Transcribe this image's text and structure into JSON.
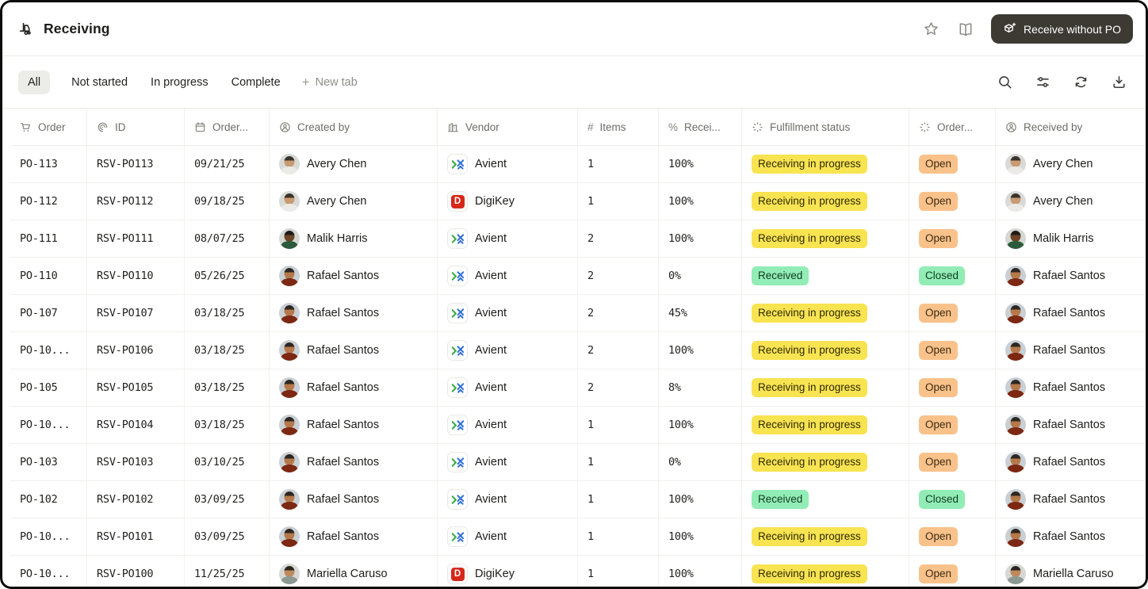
{
  "header": {
    "title": "Receiving",
    "receive_button_label": "Receive without PO"
  },
  "tabs": {
    "items": [
      {
        "label": "All",
        "active": true
      },
      {
        "label": "Not started",
        "active": false
      },
      {
        "label": "In progress",
        "active": false
      },
      {
        "label": "Complete",
        "active": false
      }
    ],
    "new_tab_label": "New tab"
  },
  "toolbar_icons": [
    "search-icon",
    "filter-icon",
    "refresh-icon",
    "download-icon"
  ],
  "table": {
    "columns": [
      {
        "key": "order",
        "icon": "cart",
        "label": "Order"
      },
      {
        "key": "id",
        "icon": "fingerprint",
        "label": "ID"
      },
      {
        "key": "date",
        "icon": "calendar",
        "label": "Order..."
      },
      {
        "key": "created_by",
        "icon": "person",
        "label": "Created by"
      },
      {
        "key": "vendor",
        "icon": "building",
        "label": "Vendor"
      },
      {
        "key": "items",
        "icon": "hash",
        "label": "Items"
      },
      {
        "key": "pct",
        "icon": "percent",
        "label": "Recei..."
      },
      {
        "key": "fulfillment",
        "icon": "status",
        "label": "Fulfillment status"
      },
      {
        "key": "order_status",
        "icon": "status",
        "label": "Order..."
      },
      {
        "key": "received_by",
        "icon": "person",
        "label": "Received by"
      }
    ],
    "rows": [
      {
        "order": "PO-113",
        "id": "RSV-PO113",
        "date": "09/21/25",
        "created_by": "avery",
        "vendor": "avient",
        "items": "1",
        "pct": "100%",
        "fulfillment": "Receiving in progress",
        "order_status": "Open",
        "received_by": "avery"
      },
      {
        "order": "PO-112",
        "id": "RSV-PO112",
        "date": "09/18/25",
        "created_by": "avery",
        "vendor": "digikey",
        "items": "1",
        "pct": "100%",
        "fulfillment": "Receiving in progress",
        "order_status": "Open",
        "received_by": "avery"
      },
      {
        "order": "PO-111",
        "id": "RSV-PO111",
        "date": "08/07/25",
        "created_by": "malik",
        "vendor": "avient",
        "items": "2",
        "pct": "100%",
        "fulfillment": "Receiving in progress",
        "order_status": "Open",
        "received_by": "malik"
      },
      {
        "order": "PO-110",
        "id": "RSV-PO110",
        "date": "05/26/25",
        "created_by": "rafael",
        "vendor": "avient",
        "items": "2",
        "pct": "0%",
        "fulfillment": "Received",
        "order_status": "Closed",
        "received_by": "rafael"
      },
      {
        "order": "PO-107",
        "id": "RSV-PO107",
        "date": "03/18/25",
        "created_by": "rafael",
        "vendor": "avient",
        "items": "2",
        "pct": "45%",
        "fulfillment": "Receiving in progress",
        "order_status": "Open",
        "received_by": "rafael"
      },
      {
        "order": "PO-10...",
        "id": "RSV-PO106",
        "date": "03/18/25",
        "created_by": "rafael",
        "vendor": "avient",
        "items": "2",
        "pct": "100%",
        "fulfillment": "Receiving in progress",
        "order_status": "Open",
        "received_by": "rafael"
      },
      {
        "order": "PO-105",
        "id": "RSV-PO105",
        "date": "03/18/25",
        "created_by": "rafael",
        "vendor": "avient",
        "items": "2",
        "pct": "8%",
        "fulfillment": "Receiving in progress",
        "order_status": "Open",
        "received_by": "rafael"
      },
      {
        "order": "PO-10...",
        "id": "RSV-PO104",
        "date": "03/18/25",
        "created_by": "rafael",
        "vendor": "avient",
        "items": "1",
        "pct": "100%",
        "fulfillment": "Receiving in progress",
        "order_status": "Open",
        "received_by": "rafael"
      },
      {
        "order": "PO-103",
        "id": "RSV-PO103",
        "date": "03/10/25",
        "created_by": "rafael",
        "vendor": "avient",
        "items": "1",
        "pct": "0%",
        "fulfillment": "Receiving in progress",
        "order_status": "Open",
        "received_by": "rafael"
      },
      {
        "order": "PO-102",
        "id": "RSV-PO102",
        "date": "03/09/25",
        "created_by": "rafael",
        "vendor": "avient",
        "items": "1",
        "pct": "100%",
        "fulfillment": "Received",
        "order_status": "Closed",
        "received_by": "rafael"
      },
      {
        "order": "PO-10...",
        "id": "RSV-PO101",
        "date": "03/09/25",
        "created_by": "rafael",
        "vendor": "avient",
        "items": "1",
        "pct": "100%",
        "fulfillment": "Receiving in progress",
        "order_status": "Open",
        "received_by": "rafael"
      },
      {
        "order": "PO-10...",
        "id": "RSV-PO100",
        "date": "11/25/25",
        "created_by": "mariella",
        "vendor": "digikey",
        "items": "1",
        "pct": "100%",
        "fulfillment": "Receiving in progress",
        "order_status": "Open",
        "received_by": "mariella"
      }
    ]
  },
  "people": {
    "avery": {
      "name": "Avery Chen",
      "bg": "#d8dad7",
      "hair": "#3a332c",
      "skin": "#c99b72",
      "shirt": "#eceae6"
    },
    "malik": {
      "name": "Malik Harris",
      "bg": "#d3d9d2",
      "hair": "#1f1b17",
      "skin": "#6e4328",
      "shirt": "#2c5a3c"
    },
    "rafael": {
      "name": "Rafael Santos",
      "bg": "#c9d0d5",
      "hair": "#2e2722",
      "skin": "#b5794b",
      "shirt": "#7c2812"
    },
    "mariella": {
      "name": "Mariella Caruso",
      "bg": "#d6d8d4",
      "hair": "#2b241f",
      "skin": "#c08a5e",
      "shirt": "#8d9992"
    }
  },
  "vendors": {
    "avient": {
      "name": "Avient"
    },
    "digikey": {
      "name": "DigiKey"
    }
  },
  "colors": {
    "button_bg": "#3d3a34",
    "badge_yellow_bg": "#F8E351",
    "badge_yellow_text": "#2e2a08",
    "badge_peach_bg": "#F9C28B",
    "badge_peach_text": "#3d2a10",
    "badge_green_bg": "#91EDB5",
    "badge_green_text": "#123a20",
    "avient_green": "#3FAE49",
    "avient_blue": "#2F6FD6",
    "digikey_red": "#D6281A"
  },
  "badge_styles": {
    "Receiving in progress": "yellow",
    "Received": "green",
    "Open": "peach",
    "Closed": "green"
  }
}
